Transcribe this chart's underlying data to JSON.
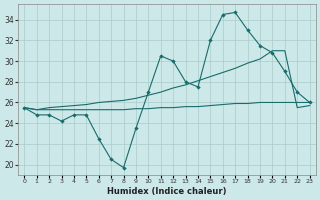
{
  "xlabel": "Humidex (Indice chaleur)",
  "bg_color": "#cce8e8",
  "grid_color": "#aacccc",
  "line_color": "#1a6b6b",
  "xlim": [
    -0.5,
    23.5
  ],
  "ylim": [
    19.0,
    35.5
  ],
  "yticks": [
    20,
    22,
    24,
    26,
    28,
    30,
    32,
    34
  ],
  "xtick_labels": [
    "0",
    "1",
    "2",
    "3",
    "4",
    "5",
    "6",
    "7",
    "8",
    "9",
    "10",
    "11",
    "12",
    "13",
    "14",
    "15",
    "16",
    "17",
    "18",
    "19",
    "20",
    "21",
    "22",
    "23"
  ],
  "series1": [
    25.5,
    24.8,
    24.8,
    24.2,
    24.8,
    24.8,
    22.5,
    20.5,
    19.7,
    23.5,
    27.0,
    30.5,
    30.0,
    28.0,
    27.5,
    32.0,
    34.5,
    34.7,
    33.0,
    31.5,
    30.8,
    29.0,
    27.0,
    26.0
  ],
  "series2": [
    25.5,
    25.3,
    25.5,
    25.6,
    25.7,
    25.8,
    26.0,
    26.1,
    26.2,
    26.4,
    26.7,
    27.0,
    27.4,
    27.7,
    28.1,
    28.5,
    28.9,
    29.3,
    29.8,
    30.2,
    31.0,
    31.0,
    25.5,
    25.7
  ],
  "series3": [
    25.5,
    25.3,
    25.3,
    25.3,
    25.3,
    25.3,
    25.3,
    25.3,
    25.3,
    25.4,
    25.4,
    25.5,
    25.5,
    25.6,
    25.6,
    25.7,
    25.8,
    25.9,
    25.9,
    26.0,
    26.0,
    26.0,
    26.0,
    26.0
  ]
}
